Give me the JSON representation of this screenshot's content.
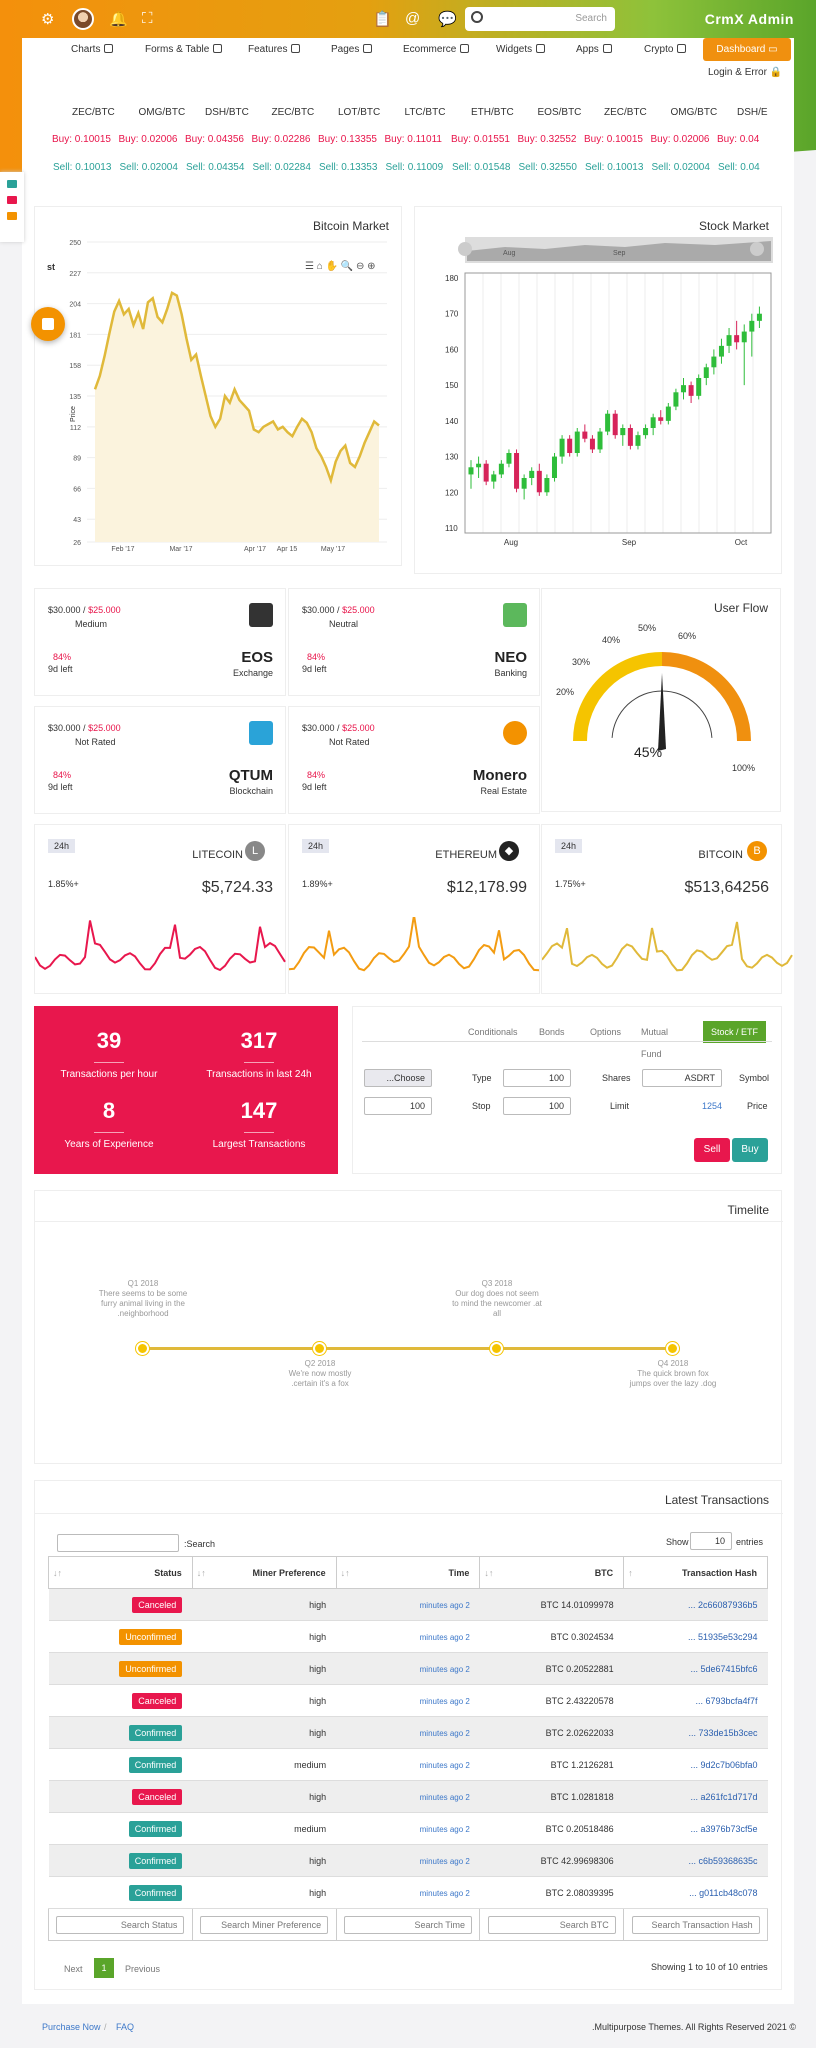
{
  "header": {
    "brand": "CrmX Admin",
    "search_placeholder": "Search"
  },
  "menu": [
    {
      "label": "Charts"
    },
    {
      "label": "Forms & Table"
    },
    {
      "label": "Features"
    },
    {
      "label": "Pages"
    },
    {
      "label": "Ecommerce"
    },
    {
      "label": "Widgets"
    },
    {
      "label": "Apps"
    },
    {
      "label": "Crypto"
    }
  ],
  "dashboard": "Dashboard",
  "login": "Login & Error",
  "ticker": {
    "pairs": [
      "ZEC/BTC",
      "OMG/BTC",
      "DSH/BTC",
      "ZEC/BTC",
      "LOT/BTC",
      "LTC/BTC",
      "ETH/BTC",
      "EOS/BTC",
      "ZEC/BTC",
      "OMG/BTC",
      "DSH/E"
    ],
    "buy": [
      "Buy: 0.10015",
      "Buy: 0.02006",
      "Buy: 0.04356",
      "Buy: 0.02286",
      "Buy: 0.13355",
      "Buy: 0.11011",
      "Buy: 0.01551",
      "Buy: 0.32552",
      "Buy: 0.10015",
      "Buy: 0.02006",
      "Buy: 0.04"
    ],
    "sell": [
      "Sell: 0.10013",
      "Sell: 0.02004",
      "Sell: 0.04354",
      "Sell: 0.02284",
      "Sell: 0.13353",
      "Sell: 0.11009",
      "Sell: 0.01548",
      "Sell: 0.32550",
      "Sell: 0.10013",
      "Sell: 0.02004",
      "Sell: 0.04"
    ]
  },
  "bitcoin_market": {
    "title": "Bitcoin Market",
    "ylabel": "Price",
    "corner": "st"
  },
  "stock_market": {
    "title": "Stock Market",
    "nav_labels": [
      "Aug",
      "Sep"
    ]
  },
  "chart_data": [
    {
      "type": "area",
      "title": "Bitcoin Market",
      "ylabel": "Price",
      "ylim": [
        26,
        250
      ],
      "yticks": [
        26,
        43,
        66,
        89,
        112,
        135,
        158,
        181,
        204,
        227,
        250
      ],
      "xticks": [
        "Feb '17",
        "Mar '17",
        "Apr '17",
        "Apr 15",
        "May '17"
      ],
      "x": [
        0,
        1,
        2,
        3,
        4,
        5,
        6,
        7,
        8,
        9,
        10,
        11,
        12,
        13,
        14,
        15,
        16,
        17,
        18,
        19,
        20,
        21,
        22,
        23,
        24,
        25,
        26,
        27,
        28,
        29,
        30,
        31,
        32,
        33,
        34,
        35,
        36,
        37,
        38,
        39,
        40,
        41,
        42,
        43,
        44,
        45,
        46,
        47,
        48,
        49,
        50,
        51,
        52,
        53,
        54,
        55,
        56,
        57,
        58,
        59
      ],
      "values": [
        140,
        150,
        165,
        182,
        198,
        206,
        196,
        200,
        188,
        197,
        185,
        205,
        208,
        194,
        190,
        200,
        212,
        210,
        196,
        178,
        162,
        166,
        150,
        135,
        120,
        112,
        118,
        135,
        130,
        140,
        132,
        128,
        124,
        110,
        108,
        112,
        114,
        116,
        110,
        112,
        108,
        105,
        112,
        118,
        115,
        108,
        96,
        90,
        82,
        72,
        86,
        94,
        98,
        85,
        82,
        90,
        100,
        108,
        116,
        113
      ],
      "color": "#e0b93a"
    },
    {
      "type": "candlestick",
      "title": "Stock Market",
      "ylim": [
        110,
        180
      ],
      "yticks": [
        110,
        120,
        130,
        140,
        150,
        160,
        170,
        180
      ],
      "xticks": [
        "Aug",
        "Sep",
        "Oct"
      ],
      "candles": [
        [
          125,
          129,
          121,
          127
        ],
        [
          127,
          130,
          124,
          128
        ],
        [
          128,
          129,
          122,
          123
        ],
        [
          123,
          126,
          121,
          125
        ],
        [
          125,
          129,
          124,
          128
        ],
        [
          128,
          132,
          127,
          131
        ],
        [
          131,
          132,
          120,
          121
        ],
        [
          121,
          125,
          118,
          124
        ],
        [
          124,
          127,
          122,
          126
        ],
        [
          126,
          128,
          119,
          120
        ],
        [
          120,
          125,
          119,
          124
        ],
        [
          124,
          131,
          123,
          130
        ],
        [
          130,
          136,
          128,
          135
        ],
        [
          135,
          136,
          130,
          131
        ],
        [
          131,
          138,
          130,
          137
        ],
        [
          137,
          139,
          134,
          135
        ],
        [
          135,
          136,
          131,
          132
        ],
        [
          132,
          138,
          131,
          137
        ],
        [
          137,
          143,
          136,
          142
        ],
        [
          142,
          143,
          135,
          136
        ],
        [
          136,
          139,
          133,
          138
        ],
        [
          138,
          139,
          132,
          133
        ],
        [
          133,
          137,
          132,
          136
        ],
        [
          136,
          139,
          135,
          138
        ],
        [
          138,
          142,
          136,
          141
        ],
        [
          141,
          143,
          139,
          140
        ],
        [
          140,
          145,
          139,
          144
        ],
        [
          144,
          149,
          143,
          148
        ],
        [
          148,
          152,
          146,
          150
        ],
        [
          150,
          151,
          145,
          147
        ],
        [
          147,
          153,
          146,
          152
        ],
        [
          152,
          156,
          150,
          155
        ],
        [
          155,
          160,
          153,
          158
        ],
        [
          158,
          163,
          156,
          161
        ],
        [
          161,
          166,
          159,
          164
        ],
        [
          164,
          168,
          160,
          162
        ],
        [
          162,
          167,
          150,
          165
        ],
        [
          165,
          170,
          158,
          168
        ],
        [
          168,
          172,
          166,
          170
        ]
      ],
      "up_color": "#2ebd3a",
      "down_color": "#d6245a"
    },
    {
      "type": "gauge",
      "title": "User Flow",
      "value": 45,
      "ticks": [
        "0%",
        "10%",
        "20%",
        "30%",
        "40%",
        "50%",
        "60%",
        "70%",
        "80%",
        "90%",
        "100%"
      ]
    }
  ],
  "coins": [
    {
      "price": "$30.000",
      "price2": "$25.000",
      "rating": "Medium",
      "pct": "84%",
      "left": "9d left",
      "name": "EOS",
      "sub": "Exchange"
    },
    {
      "price": "$30.000",
      "price2": "$25.000",
      "rating": "Neutral",
      "pct": "84%",
      "left": "9d left",
      "name": "NEO",
      "sub": "Banking"
    },
    {
      "price": "$30.000",
      "price2": "$25.000",
      "rating": "Not Rated",
      "pct": "84%",
      "left": "9d left",
      "name": "QTUM",
      "sub": "Blockchain"
    },
    {
      "price": "$30.000",
      "price2": "$25.000",
      "rating": "Not Rated",
      "pct": "84%",
      "left": "9d left",
      "name": "Monero",
      "sub": "Real Estate"
    }
  ],
  "user_flow": {
    "title": "User Flow",
    "value": "45%",
    "labels": [
      "40%",
      "50%",
      "60%",
      "30%",
      "20%"
    ],
    "label100": "100%"
  },
  "sparks": [
    {
      "badge": "24h",
      "name": "LITECOIN",
      "pct": "1.85%+",
      "value": "$5,724.33",
      "color": "#e8174d",
      "icon": "L",
      "icon_color": "#888"
    },
    {
      "badge": "24h",
      "name": "ETHEREUM",
      "pct": "1.89%+",
      "value": "$12,178.99",
      "color": "#f39c12",
      "icon": "◆",
      "icon_color": "#222"
    },
    {
      "badge": "24h",
      "name": "BITCOIN",
      "pct": "1.75%+",
      "value": "$513,64256",
      "color": "#e0b93a",
      "icon": "B",
      "icon_color": "#f39200"
    }
  ],
  "stats": [
    {
      "n": "39",
      "l": "Transactions per hour"
    },
    {
      "n": "317",
      "l": "Transactions in last 24h"
    },
    {
      "n": "8",
      "l": "Years of Experience"
    },
    {
      "n": "147",
      "l": "Largest Transactions"
    }
  ],
  "trade": {
    "tabs": [
      "Conditionals",
      "Bonds",
      "Options",
      "Mutual Fund",
      "Stock / ETF"
    ],
    "choose": "...Choose",
    "type_label": "Type",
    "type_val": "100",
    "shares_label": "Shares",
    "shares_val": "ASDRT",
    "symbol_label": "Symbol",
    "qty_val": "100",
    "stop_label": "Stop",
    "stop_val": "100",
    "limit_label": "Limit",
    "limit_val": "1254",
    "price_label": "Price",
    "sell": "Sell",
    "buy": "Buy"
  },
  "timeline": {
    "title": "Timelite",
    "items": [
      {
        "q": "Q1 2018",
        "t": "There seems to be some furry animal living in the .neighborhood"
      },
      {
        "q": "Q2 2018",
        "t": "We're now mostly .certain it's a fox"
      },
      {
        "q": "Q3 2018",
        "t": "Our dog does not seem to mind the newcomer .at all"
      },
      {
        "q": "Q4 2018",
        "t": "The quick brown fox jumps over the lazy .dog"
      }
    ]
  },
  "transactions": {
    "title": "Latest Transactions",
    "search_label": ":Search",
    "show": "Show",
    "entries": "entries",
    "page_size": "10",
    "columns": [
      "Status",
      "Miner Preference",
      "Time",
      "BTC",
      "Transaction Hash"
    ],
    "rows": [
      {
        "status": "Canceled",
        "pref": "high",
        "time": "minutes ago 2",
        "btc": "BTC 14.01099978",
        "hash": "... 2c66087936b5"
      },
      {
        "status": "Unconfirmed",
        "pref": "high",
        "time": "minutes ago 2",
        "btc": "BTC 0.3024534",
        "hash": "... 51935e53c294"
      },
      {
        "status": "Unconfirmed",
        "pref": "high",
        "time": "minutes ago 2",
        "btc": "BTC 0.20522881",
        "hash": "... 5de67415bfc6"
      },
      {
        "status": "Canceled",
        "pref": "high",
        "time": "minutes ago 2",
        "btc": "BTC 2.43220578",
        "hash": "... 6793bcfa4f7f"
      },
      {
        "status": "Confirmed",
        "pref": "high",
        "time": "minutes ago 2",
        "btc": "BTC 2.02622033",
        "hash": "... 733de15b3cec"
      },
      {
        "status": "Confirmed",
        "pref": "medium",
        "time": "minutes ago 2",
        "btc": "BTC 1.2126281",
        "hash": "... 9d2c7b06bfa0"
      },
      {
        "status": "Canceled",
        "pref": "high",
        "time": "minutes ago 2",
        "btc": "BTC 1.0281818",
        "hash": "... a261fc1d717d"
      },
      {
        "status": "Confirmed",
        "pref": "medium",
        "time": "minutes ago 2",
        "btc": "BTC 0.20518486",
        "hash": "... a3976b73cf5e"
      },
      {
        "status": "Confirmed",
        "pref": "high",
        "time": "minutes ago 2",
        "btc": "BTC 42.99698306",
        "hash": "... c6b59368635c"
      },
      {
        "status": "Confirmed",
        "pref": "high",
        "time": "minutes ago 2",
        "btc": "BTC 2.08039395",
        "hash": "... g011cb48c078"
      }
    ],
    "search_placeholders": [
      "Search Status",
      "Search Miner Preference",
      "Search Time",
      "Search BTC",
      "Search Transaction Hash"
    ],
    "next": "Next",
    "page": "1",
    "previous": "Previous",
    "showing": "Showing 1 to 10 of 10 entries",
    "status_colors": {
      "Canceled": "#e8174d",
      "Unconfirmed": "#f39200",
      "Confirmed": "#2aa198"
    }
  },
  "footer": {
    "purchase": "Purchase Now",
    "faq": "FAQ",
    "copyright": ".Multipurpose Themes. All Rights Reserved 2021 ©"
  }
}
